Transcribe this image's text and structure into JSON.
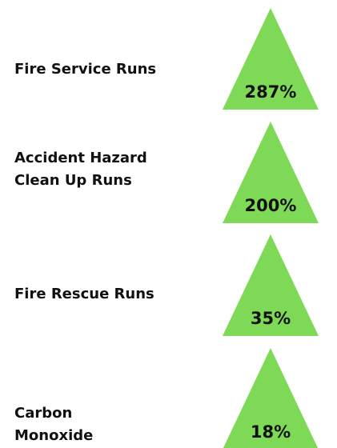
{
  "items": [
    {
      "label_lines": [
        "Fire Service Runs"
      ],
      "value": "287%"
    },
    {
      "label_lines": [
        "Accident Hazard",
        "Clean Up Runs"
      ],
      "value": "200%"
    },
    {
      "label_lines": [
        "Fire Rescue Runs"
      ],
      "value": "35%"
    },
    {
      "label_lines": [
        "Carbon",
        "Monoxide"
      ],
      "value": "18%"
    }
  ]
}
